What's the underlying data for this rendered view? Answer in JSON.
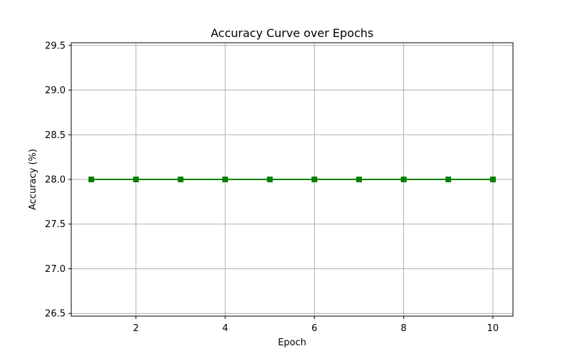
{
  "chart_data": {
    "type": "line",
    "title": "Accuracy Curve over Epochs",
    "xlabel": "Epoch",
    "ylabel": "Accuracy (%)",
    "x": [
      1,
      2,
      3,
      4,
      5,
      6,
      7,
      8,
      9,
      10
    ],
    "series": [
      {
        "values": [
          28.0,
          28.0,
          28.0,
          28.0,
          28.0,
          28.0,
          28.0,
          28.0,
          28.0,
          28.0
        ],
        "color": "#008000",
        "marker": "square"
      }
    ],
    "xlim": [
      0.55,
      10.45
    ],
    "ylim": [
      26.47,
      29.53
    ],
    "xticks": [
      2,
      4,
      6,
      8,
      10
    ],
    "xtick_labels": [
      "2",
      "4",
      "6",
      "8",
      "10"
    ],
    "yticks": [
      26.5,
      27.0,
      27.5,
      28.0,
      28.5,
      29.0,
      29.5
    ],
    "ytick_labels": [
      "26.5",
      "27.0",
      "27.5",
      "28.0",
      "28.5",
      "29.0",
      "29.5"
    ],
    "grid": true,
    "grid_color": "#b0b0b0"
  }
}
